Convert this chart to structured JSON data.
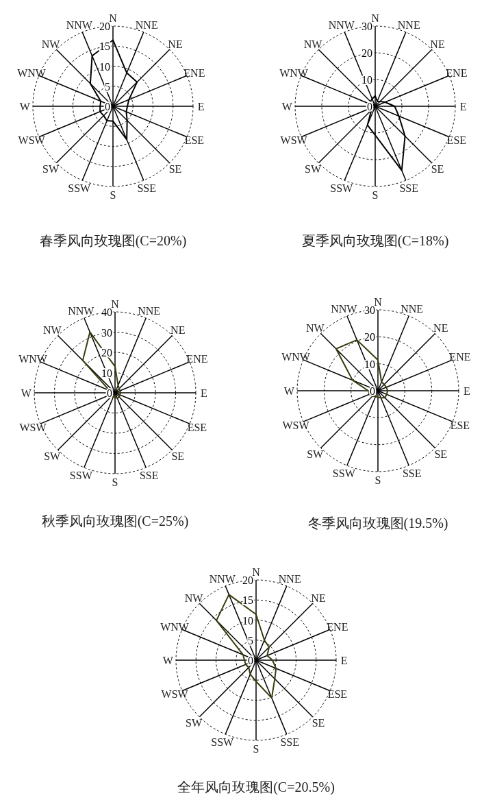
{
  "chart_data": [
    {
      "type": "radar",
      "title": "春季风向玫瑰图(C=20%)",
      "categories": [
        "N",
        "NNE",
        "NE",
        "ENE",
        "E",
        "ESE",
        "SE",
        "SSE",
        "S",
        "SSW",
        "SW",
        "WSW",
        "W",
        "WNW",
        "NW",
        "NNW"
      ],
      "ylim": [
        0,
        20
      ],
      "yticks": [
        0,
        5,
        10,
        15,
        20
      ],
      "grid": true,
      "series": [
        {
          "color": "#000000",
          "values": [
            16.5,
            9,
            8.5,
            4.3,
            3.6,
            3.6,
            5,
            9,
            3.7,
            3.9,
            3.3,
            3.5,
            3.2,
            3.3,
            8,
            13.6
          ]
        }
      ]
    },
    {
      "type": "radar",
      "title": "夏季风向玫瑰图(C=18%)",
      "categories": [
        "N",
        "NNE",
        "NE",
        "ENE",
        "E",
        "ESE",
        "SE",
        "SSE",
        "S",
        "SSW",
        "SW",
        "WSW",
        "W",
        "WNW",
        "NW",
        "NNW"
      ],
      "ylim": [
        0,
        30
      ],
      "yticks": [
        0,
        10,
        20,
        30
      ],
      "grid": true,
      "series": [
        {
          "color": "#000000",
          "values": [
            3.9,
            2,
            2.5,
            4,
            7.3,
            9.6,
            15.8,
            26,
            10.8,
            7.6,
            2,
            1.5,
            1.5,
            2,
            2.5,
            3
          ]
        }
      ]
    },
    {
      "type": "radar",
      "title": "秋季风向玫瑰图(C=25%)",
      "categories": [
        "N",
        "NNE",
        "NE",
        "ENE",
        "E",
        "ESE",
        "SE",
        "SSE",
        "S",
        "SSW",
        "SW",
        "WSW",
        "W",
        "WNW",
        "NW",
        "NNW"
      ],
      "ylim": [
        0,
        40
      ],
      "yticks": [
        0,
        10,
        20,
        30,
        40
      ],
      "grid": true,
      "series": [
        {
          "color": "#3a3a0a",
          "values": [
            13,
            4,
            3,
            2.5,
            2.9,
            2.5,
            3,
            3,
            2,
            2,
            2.5,
            2,
            2,
            3,
            22.6,
            32.5
          ]
        }
      ]
    },
    {
      "type": "radar",
      "title": "冬季风向玫瑰图(19.5%)",
      "categories": [
        "N",
        "NNE",
        "NE",
        "ENE",
        "E",
        "ESE",
        "SE",
        "SSE",
        "S",
        "SSW",
        "SW",
        "WSW",
        "W",
        "WNW",
        "NW",
        "NNW"
      ],
      "ylim": [
        0,
        30
      ],
      "yticks": [
        0,
        10,
        20,
        30
      ],
      "grid": true,
      "series": [
        {
          "color": "#3a3a0a",
          "values": [
            11.4,
            3.5,
            3.3,
            3.4,
            3.6,
            3.5,
            3.7,
            2.8,
            2.4,
            2.3,
            2.8,
            3.4,
            3.6,
            10.2,
            22,
            20.4
          ]
        }
      ]
    },
    {
      "type": "radar",
      "title": "全年风向玫瑰图(C=20.5%)",
      "categories": [
        "N",
        "NNE",
        "NE",
        "ENE",
        "E",
        "ESE",
        "SE",
        "SSE",
        "S",
        "SSW",
        "SW",
        "WSW",
        "W",
        "WNW",
        "NW",
        "NNW"
      ],
      "ylim": [
        0,
        20
      ],
      "yticks": [
        0,
        5,
        10,
        15,
        20
      ],
      "grid": true,
      "series": [
        {
          "color": "#3a3a0a",
          "values": [
            11.4,
            5.4,
            4.6,
            3,
            4.1,
            5.4,
            6.6,
            10.2,
            5.3,
            3.8,
            2.6,
            2.8,
            2.9,
            3.5,
            14,
            17.7
          ]
        }
      ]
    }
  ]
}
